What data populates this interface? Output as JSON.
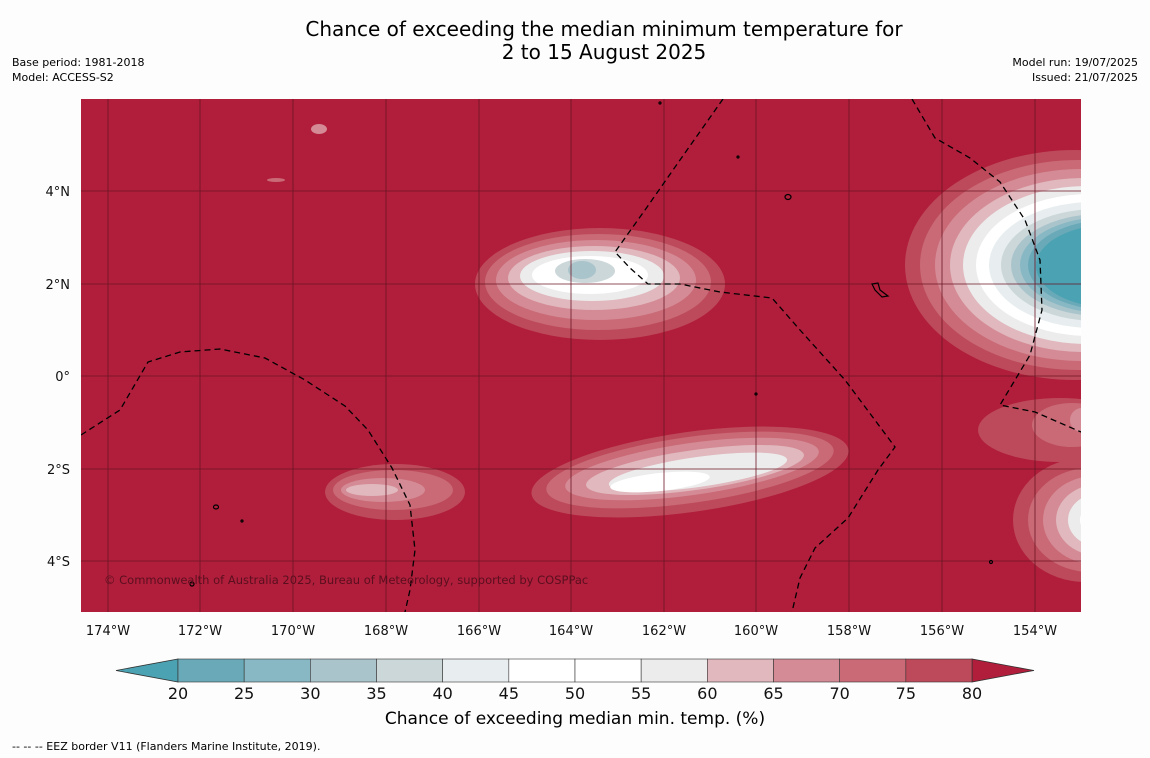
{
  "title_line1": "Chance of exceeding the median minimum temperature for",
  "title_line2": "2 to 15 August 2025",
  "meta_left": {
    "base_period": "Base period: 1981-2018",
    "model": "Model: ACCESS-S2"
  },
  "meta_right": {
    "model_run": "Model run: 19/07/2025",
    "issued": "Issued: 21/07/2025"
  },
  "copyright": "© Commonwealth of Australia 2025, Bureau of Meteorology, supported by COSPPac",
  "lon_labels": [
    "174°W",
    "172°W",
    "170°W",
    "168°W",
    "166°W",
    "164°W",
    "162°W",
    "160°W",
    "158°W",
    "156°W",
    "154°W"
  ],
  "lat_labels": [
    "4°N",
    "2°N",
    "0°",
    "2°S",
    "4°S"
  ],
  "colorbar": {
    "title": "Chance of exceeding median min. temp. (%)",
    "tick_labels": [
      "20",
      "25",
      "30",
      "35",
      "40",
      "45",
      "50",
      "55",
      "60",
      "65",
      "70",
      "75",
      "80"
    ],
    "under_color": "#4aa2b2",
    "over_color": "#b01e3b",
    "bin_colors": [
      "#6aaab8",
      "#88b8c4",
      "#aac4cb",
      "#ccd7da",
      "#e8eef0",
      "#ffffff",
      "#ffffff",
      "#ececec",
      "#e0b8be",
      "#d48b95",
      "#c96a76",
      "#bd4a5a"
    ]
  },
  "colors": {
    "background_high": "#b01e3b",
    "cool_core": "#4aa2b2",
    "eez_line": "#000000",
    "grid_line": "#6b1425"
  },
  "footnote": "--  --  -- EEZ border V11 (Flanders Marine Institute, 2019)."
}
